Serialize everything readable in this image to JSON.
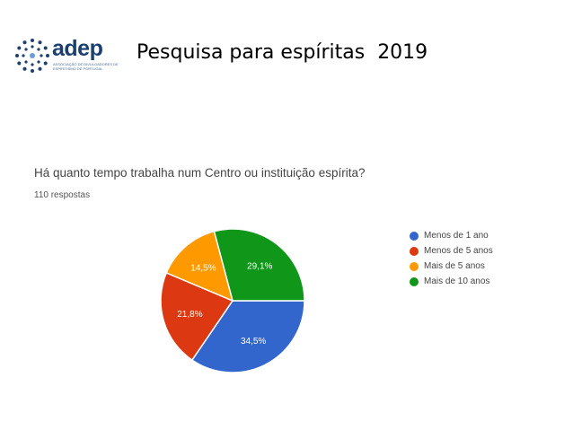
{
  "header": {
    "logo_name": "adep",
    "logo_subtitle": "Associação de Divulgadores de Espiritismo de Portugal",
    "slide_title": "Pesquisa para espíritas  2019"
  },
  "chart_data": {
    "type": "pie",
    "title": "Há quanto tempo trabalha num Centro ou instituição espírita?",
    "subtitle": "110 respostas",
    "legend_position": "right",
    "slices": [
      {
        "label": "Menos de 1 ano",
        "value": 34.5,
        "value_label": "34,5%",
        "color": "#3366cc"
      },
      {
        "label": "Menos de 5 anos",
        "value": 21.8,
        "value_label": "21,8%",
        "color": "#dc3912"
      },
      {
        "label": "Mais de 5 anos",
        "value": 14.5,
        "value_label": "14,5%",
        "color": "#ff9900"
      },
      {
        "label": "Mais de 10 anos",
        "value": 29.1,
        "value_label": "29,1%",
        "color": "#109618"
      }
    ]
  }
}
